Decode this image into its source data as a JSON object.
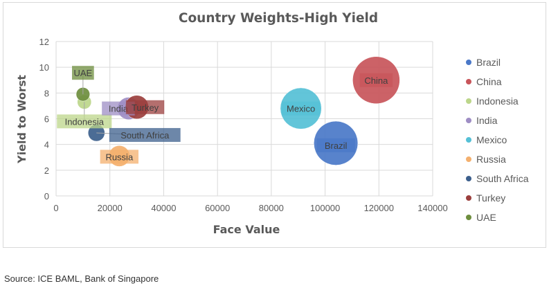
{
  "chart_data": {
    "type": "bubble",
    "title": "Country Weights-High Yield",
    "xlabel": "Face Value",
    "ylabel": "Yield to Worst",
    "xlim": [
      0,
      140000
    ],
    "ylim": [
      0,
      12
    ],
    "xticks": [
      0,
      20000,
      40000,
      60000,
      80000,
      100000,
      120000,
      140000
    ],
    "yticks": [
      0,
      2,
      4,
      6,
      8,
      10,
      12
    ],
    "grid": true,
    "legend_position": "right",
    "series": [
      {
        "name": "Brazil",
        "x": 104000,
        "y": 4.1,
        "size": 104000,
        "color": "#4a78c8"
      },
      {
        "name": "China",
        "x": 119000,
        "y": 9.0,
        "size": 119000,
        "color": "#c8555a"
      },
      {
        "name": "Indonesia",
        "x": 10500,
        "y": 7.3,
        "size": 10500,
        "color": "#bcd68a"
      },
      {
        "name": "India",
        "x": 27000,
        "y": 6.8,
        "size": 27000,
        "color": "#9e8dc4"
      },
      {
        "name": "Mexico",
        "x": 91000,
        "y": 6.8,
        "size": 91000,
        "color": "#55c0d6"
      },
      {
        "name": "Russia",
        "x": 23500,
        "y": 3.1,
        "size": 23500,
        "color": "#f4b06e"
      },
      {
        "name": "South Africa",
        "x": 15000,
        "y": 4.9,
        "size": 15000,
        "color": "#3c5f8c"
      },
      {
        "name": "Turkey",
        "x": 30000,
        "y": 6.9,
        "size": 30000,
        "color": "#9b3f3d"
      },
      {
        "name": "UAE",
        "x": 10000,
        "y": 7.9,
        "size": 10000,
        "color": "#6e8e3e"
      }
    ]
  },
  "source": "Source: ICE BAML, Bank of Singapore"
}
